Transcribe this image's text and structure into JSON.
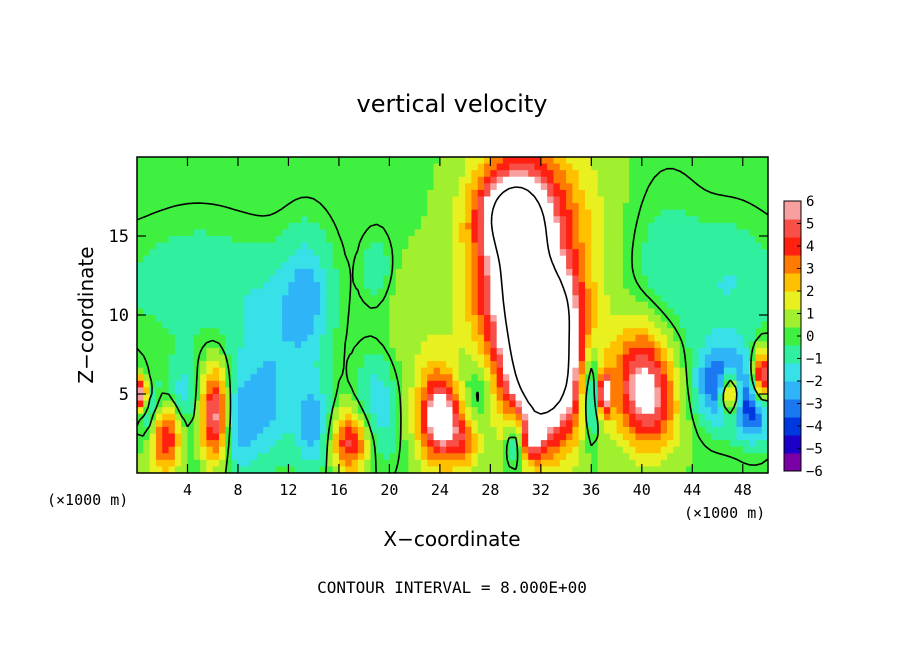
{
  "chart_data": {
    "type": "heatmap",
    "title": "vertical velocity",
    "xlabel": "X−coordinate",
    "ylabel": "Z−coordinate",
    "x_unit_left": "(×1000 m)",
    "x_unit_right": "(×1000 m)",
    "footer": "CONTOUR INTERVAL = 8.000E+00",
    "xlim": [
      0,
      50
    ],
    "ylim": [
      0,
      20
    ],
    "x_ticks": [
      4,
      8,
      12,
      16,
      20,
      24,
      28,
      32,
      36,
      40,
      44,
      48
    ],
    "x_tick_labels": [
      "4",
      "8",
      "12",
      "16",
      "20",
      "24",
      "28",
      "32",
      "36",
      "40",
      "44",
      "48"
    ],
    "y_ticks": [
      5,
      10,
      15
    ],
    "y_tick_labels": [
      "5",
      "10",
      "15"
    ],
    "colorbar_ticks": [
      6,
      5,
      4,
      3,
      2,
      1,
      0,
      -1,
      -2,
      -3,
      -4,
      -5,
      -6
    ],
    "colorbar_labels": [
      "6",
      "5",
      "4",
      "3",
      "2",
      "1",
      "0",
      "−1",
      "−2",
      "−3",
      "−4",
      "−5",
      "−6"
    ],
    "colormap": [
      "#7a00a6",
      "#1a00c8",
      "#0038e0",
      "#1a78f0",
      "#30b4f8",
      "#38e0e8",
      "#30f0a0",
      "#40f040",
      "#a0f030",
      "#e8f020",
      "#ffc000",
      "#ff7a00",
      "#ff2010",
      "#f85048",
      "#f8a0a0"
    ],
    "background_value": 0.3,
    "saturated_color": "#ffffff",
    "features": [
      {
        "x": 30.5,
        "z": 13.0,
        "sx": 2.6,
        "sz": 5.0,
        "w": 9
      },
      {
        "x": 32.5,
        "z": 6.0,
        "sx": 2.2,
        "sz": 3.0,
        "w": 8
      },
      {
        "x": 29.5,
        "z": 16.5,
        "sx": 1.8,
        "sz": 1.6,
        "w": 4
      },
      {
        "x": 33.0,
        "z": 10.5,
        "sx": 1.4,
        "sz": 1.6,
        "w": 3
      },
      {
        "x": 31.0,
        "z": 2.0,
        "sx": 1.0,
        "sz": 1.0,
        "w": 3
      },
      {
        "x": 6.2,
        "z": 3.5,
        "sx": 0.9,
        "sz": 2.2,
        "w": 9
      },
      {
        "x": 7.0,
        "z": 3.0,
        "sx": 1.6,
        "sz": 2.5,
        "w": -4
      },
      {
        "x": 2.2,
        "z": 2.4,
        "sx": 0.9,
        "sz": 1.6,
        "w": 5
      },
      {
        "x": 1.0,
        "z": 4.0,
        "sx": 0.7,
        "sz": 1.4,
        "w": -3
      },
      {
        "x": 0.2,
        "z": 5.0,
        "sx": 0.5,
        "sz": 0.8,
        "w": 7
      },
      {
        "x": 3.5,
        "z": 5.0,
        "sx": 1.0,
        "sz": 1.5,
        "w": -2
      },
      {
        "x": 10.5,
        "z": 4.0,
        "sx": 1.5,
        "sz": 2.5,
        "w": -2
      },
      {
        "x": 10.5,
        "z": 9.0,
        "sx": 2.0,
        "sz": 3.0,
        "w": -1.5
      },
      {
        "x": 13.5,
        "z": 11.0,
        "sx": 1.4,
        "sz": 3.0,
        "w": -2.5
      },
      {
        "x": 14.0,
        "z": 3.0,
        "sx": 1.0,
        "sz": 2.0,
        "w": -3
      },
      {
        "x": 17.0,
        "z": 2.0,
        "sx": 1.1,
        "sz": 1.4,
        "w": 5
      },
      {
        "x": 19.0,
        "z": 4.0,
        "sx": 1.2,
        "sz": 2.5,
        "w": -2.5
      },
      {
        "x": 19.0,
        "z": 13.0,
        "sx": 0.8,
        "sz": 1.5,
        "w": -1.5
      },
      {
        "x": 24.0,
        "z": 3.5,
        "sx": 1.2,
        "sz": 2.0,
        "w": 7
      },
      {
        "x": 26.0,
        "z": 2.0,
        "sx": 0.9,
        "sz": 1.2,
        "w": 3
      },
      {
        "x": 30.0,
        "z": 2.0,
        "sx": 0.6,
        "sz": 1.2,
        "w": -5
      },
      {
        "x": 27.0,
        "z": 5.0,
        "sx": 1.2,
        "sz": 2.0,
        "w": -2
      },
      {
        "x": 36.0,
        "z": 5.0,
        "sx": 0.6,
        "sz": 2.0,
        "w": -5
      },
      {
        "x": 37.0,
        "z": 5.0,
        "sx": 0.4,
        "sz": 1.0,
        "w": 6
      },
      {
        "x": 40.0,
        "z": 6.0,
        "sx": 1.6,
        "sz": 2.6,
        "w": 5
      },
      {
        "x": 41.0,
        "z": 4.0,
        "sx": 1.6,
        "sz": 2.0,
        "w": 2.5
      },
      {
        "x": 42.0,
        "z": 13.0,
        "sx": 2.0,
        "sz": 4.0,
        "w": -1
      },
      {
        "x": 46.5,
        "z": 5.5,
        "sx": 1.6,
        "sz": 1.8,
        "w": -5
      },
      {
        "x": 47.0,
        "z": 5.0,
        "sx": 0.6,
        "sz": 1.0,
        "w": 7
      },
      {
        "x": 49.5,
        "z": 6.0,
        "sx": 0.6,
        "sz": 1.2,
        "w": 7
      },
      {
        "x": 49.0,
        "z": 4.0,
        "sx": 1.0,
        "sz": 1.5,
        "w": -4
      },
      {
        "x": 47.0,
        "z": 12.0,
        "sx": 2.0,
        "sz": 3.0,
        "w": -1
      },
      {
        "x": 5.0,
        "z": 12.0,
        "sx": 3.0,
        "sz": 3.0,
        "w": -0.8
      },
      {
        "x": 22.0,
        "z": 9.0,
        "sx": 2.0,
        "sz": 3.0,
        "w": 0.8
      },
      {
        "x": 35.0,
        "z": 14.0,
        "sx": 2.5,
        "sz": 5.0,
        "w": 1.2
      }
    ]
  }
}
